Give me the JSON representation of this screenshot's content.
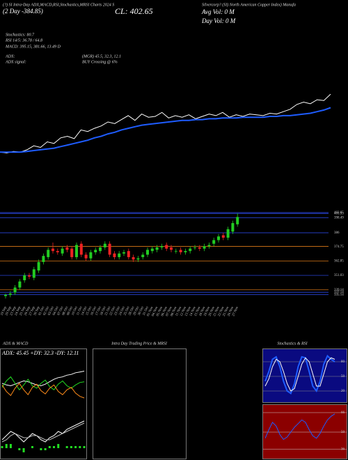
{
  "header": {
    "title_left": "(?) SI Intra-Day ADX,MACD,RSI,Stochastics,MRSI Charts 2024 S",
    "title_right": "Silvercorp? (SI) North American Copper Index) Manufa",
    "change": "(2 Day -384.85)",
    "close": "CL: 402.65",
    "avg_vol": "Avg Vol: 0  M",
    "day_vol": "Day Vol: 0  M",
    "stochastics": "Stochastics: 80.7",
    "rsi": "RSI 14/5: 36.78 / 64.8",
    "macd": "MACD: 395.15, 381.66, 13.49 D",
    "adx": "ADX:",
    "adx_values": "(MGR) 45.5, 32.3, 12.1",
    "adx_signal": "ADX  signal:",
    "signal": "BUY Crossing @ 6%"
  },
  "chart_data": [
    {
      "type": "line",
      "ylim": [
        320,
        420
      ],
      "series": [
        {
          "name": "Price",
          "color": "#ffffff",
          "values": [
            332,
            331,
            333,
            332,
            335,
            340,
            338,
            345,
            343,
            350,
            352,
            349,
            360,
            358,
            362,
            365,
            370,
            368,
            373,
            378,
            372,
            380,
            376,
            377,
            382,
            375,
            378,
            376,
            379,
            374,
            377,
            380,
            378,
            382,
            376,
            379,
            377,
            380,
            379,
            378,
            381,
            380,
            383,
            386,
            392,
            395,
            393,
            398,
            397,
            405
          ]
        },
        {
          "name": "Average",
          "color": "#1e5cff",
          "values": [
            332,
            332,
            332,
            332,
            333,
            334,
            335,
            336,
            337,
            339,
            341,
            343,
            345,
            347,
            350,
            352,
            355,
            357,
            360,
            362,
            364,
            366,
            367,
            368,
            369,
            370,
            371,
            372,
            372,
            373,
            373,
            374,
            374,
            375,
            375,
            375,
            376,
            376,
            376,
            376,
            377,
            377,
            378,
            378,
            379,
            380,
            381,
            383,
            385,
            388
          ]
        }
      ]
    },
    {
      "type": "candlestick",
      "ylim": [
        331,
        405.5
      ],
      "yticks": [
        402.65,
        401.93,
        398.49,
        386,
        374.75,
        362.85,
        351.03,
        339.14,
        337.14,
        335.14
      ],
      "line_colors": [
        "#3050ff",
        "#3050ff",
        "#3050ff",
        "#3050ff",
        "#ff8c1a",
        "#ff8c1a",
        "#3050ff",
        "#ff8c1a",
        "#3050ff",
        "#3050ff"
      ],
      "up_color": "#22cc22",
      "down_color": "#ee2222",
      "categories": [
        "19 Sep",
        "20 Sep",
        "23 Sep",
        "24 Sep",
        "25 Sep",
        "26 Sep",
        "27 Sep",
        "30 Sep",
        "01 Oct",
        "02 Oct",
        "03 Oct",
        "04 Oct",
        "07 Oct",
        "08 Oct",
        "09 Oct",
        "10 Oct",
        "11 Oct",
        "14 Oct",
        "15 Oct",
        "16 Oct",
        "17 Oct",
        "18 Oct",
        "21 Oct",
        "22 Oct",
        "23 Oct",
        "24 Oct",
        "25 Oct",
        "28 Oct",
        "29 Oct",
        "30 Oct",
        "31 Oct",
        "01 Nov",
        "04 Nov",
        "05 Nov",
        "06 Nov",
        "07 Nov",
        "08 Nov",
        "11 Nov",
        "12 Nov",
        "13 Nov",
        "14 Nov",
        "15 Nov",
        "18 Nov",
        "19 Nov",
        "20 Nov",
        "21 Nov",
        "22 Nov",
        "25 Nov",
        "26 Nov",
        "27 Nov"
      ],
      "open": [
        334,
        335,
        337,
        341,
        347,
        351,
        349,
        355,
        362,
        366,
        373,
        371,
        369,
        374,
        373,
        366,
        377,
        368,
        365,
        370,
        371,
        374,
        377,
        369,
        366,
        369,
        371,
        366,
        364,
        366,
        368,
        371,
        372,
        374,
        376,
        374,
        371,
        372,
        370,
        371,
        374,
        374,
        373,
        375,
        377,
        380,
        384,
        382,
        387,
        393
      ],
      "high": [
        336,
        338,
        343,
        348,
        353,
        353,
        358,
        364,
        369,
        374,
        378,
        373,
        375,
        376,
        375,
        378,
        379,
        370,
        372,
        374,
        376,
        379,
        379,
        371,
        371,
        372,
        373,
        368,
        367,
        370,
        374,
        375,
        376,
        377,
        378,
        376,
        373,
        374,
        373,
        375,
        376,
        376,
        377,
        378,
        382,
        385,
        386,
        391,
        396,
        402
      ],
      "low": [
        332,
        333,
        335,
        339,
        345,
        348,
        347,
        353,
        360,
        364,
        369,
        368,
        367,
        370,
        364,
        364,
        366,
        363,
        363,
        368,
        369,
        372,
        366,
        364,
        364,
        367,
        364,
        362,
        362,
        364,
        366,
        369,
        370,
        372,
        371,
        370,
        369,
        368,
        368,
        369,
        372,
        371,
        371,
        373,
        375,
        378,
        380,
        380,
        385,
        391
      ],
      "close": [
        335,
        336,
        341,
        346,
        351,
        350,
        356,
        362,
        367,
        372,
        371,
        370,
        373,
        372,
        366,
        376,
        368,
        365,
        370,
        372,
        374,
        377,
        368,
        366,
        369,
        370,
        366,
        364,
        365,
        368,
        372,
        373,
        374,
        375,
        373,
        372,
        371,
        370,
        371,
        373,
        374,
        373,
        375,
        376,
        380,
        383,
        382,
        389,
        394,
        399
      ]
    },
    {
      "type": "adx_macd",
      "title": "ADX & MACD",
      "legend": "ADX: 45.45 +DY: 32.3 -DY: 12.11",
      "ylim": [
        0,
        60
      ],
      "y2lim": [
        -4,
        16
      ],
      "series": [
        {
          "name": "ADX",
          "color": "#ffffff",
          "values": [
            30,
            28,
            27,
            29,
            31,
            33,
            32,
            30,
            28,
            27,
            29,
            32,
            35,
            37,
            38,
            40,
            41,
            43,
            44,
            45
          ]
        },
        {
          "name": "+DY",
          "color": "#22dd22",
          "values": [
            25,
            33,
            38,
            30,
            22,
            28,
            35,
            27,
            24,
            30,
            34,
            26,
            22,
            29,
            33,
            27,
            24,
            28,
            31,
            32
          ]
        },
        {
          "name": "-DY",
          "color": "#ff8c1a",
          "values": [
            28,
            20,
            15,
            24,
            30,
            22,
            16,
            25,
            29,
            21,
            17,
            24,
            28,
            20,
            16,
            22,
            25,
            18,
            14,
            12
          ]
        },
        {
          "name": "MACD",
          "color": "#ffffff",
          "axis": "y2",
          "values": [
            4,
            6,
            8,
            7,
            5,
            3,
            5,
            7,
            6,
            4,
            3,
            5,
            6,
            8,
            7,
            9,
            10,
            11,
            12,
            13
          ]
        },
        {
          "name": "Signal",
          "color": "#bbbbbb",
          "axis": "y2",
          "values": [
            3,
            4,
            6,
            7,
            6,
            5,
            5,
            6,
            6,
            5,
            4,
            4,
            5,
            6,
            7,
            8,
            9,
            10,
            11,
            12
          ]
        }
      ],
      "histogram": {
        "color": "#22dd22",
        "values": [
          1,
          2,
          2,
          0,
          -1,
          -2,
          0,
          1,
          0,
          -1,
          -1,
          1,
          1,
          2,
          0,
          1,
          1,
          1,
          1,
          1
        ]
      }
    },
    {
      "type": "intraday",
      "title": "Intra  Day Trading Price  & MRSI"
    },
    {
      "type": "stoch_rsi",
      "title": "Stochastics & RSI",
      "ylim": [
        0,
        100
      ],
      "yticks": [
        20,
        50,
        80
      ],
      "y2lim": [
        30,
        70
      ],
      "y2ticks": [
        36,
        50,
        66
      ],
      "series": [
        {
          "name": "%K",
          "color": "#1e5cff",
          "values": [
            40,
            60,
            85,
            90,
            70,
            40,
            20,
            15,
            35,
            70,
            90,
            88,
            60,
            30,
            20,
            40,
            75,
            92,
            85,
            80
          ]
        },
        {
          "name": "%D",
          "color": "#ffffff",
          "values": [
            30,
            45,
            70,
            85,
            80,
            60,
            35,
            20,
            25,
            50,
            75,
            88,
            80,
            55,
            30,
            30,
            55,
            80,
            88,
            85
          ]
        },
        {
          "name": "RSI",
          "color": "#1e5cff",
          "axis": "y2",
          "values": [
            45,
            52,
            58,
            55,
            48,
            44,
            46,
            50,
            54,
            57,
            60,
            58,
            52,
            47,
            45,
            49,
            55,
            60,
            63,
            65
          ]
        }
      ]
    }
  ]
}
